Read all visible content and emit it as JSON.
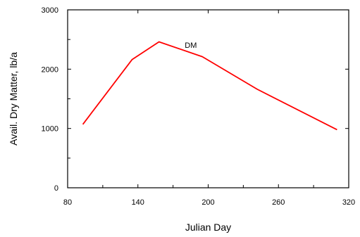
{
  "chart_data": {
    "type": "line",
    "xlabel": "Julian Day",
    "ylabel": "Avail. Dry Matter, lb/a",
    "xlim": [
      80,
      320
    ],
    "ylim": [
      0,
      3000
    ],
    "x_ticks": [
      80,
      140,
      200,
      260,
      320
    ],
    "x_minor_ticks": [
      110,
      170,
      230,
      290
    ],
    "y_ticks": [
      0,
      1000,
      2000,
      3000
    ],
    "y_minor_ticks": [
      500,
      1500,
      2500
    ],
    "x_tick_labels": [
      "80",
      "140",
      "200",
      "260",
      "320"
    ],
    "y_tick_labels": [
      "0",
      "1000",
      "2000",
      "3000"
    ],
    "grid": false,
    "series": [
      {
        "name": "DM",
        "color": "#ff0000",
        "x": [
          93,
          135,
          158,
          195,
          242,
          310
        ],
        "y": [
          1070,
          2160,
          2460,
          2210,
          1660,
          980
        ]
      }
    ],
    "annotations": [
      {
        "text": "DM",
        "x": 180,
        "y": 2360
      }
    ]
  }
}
